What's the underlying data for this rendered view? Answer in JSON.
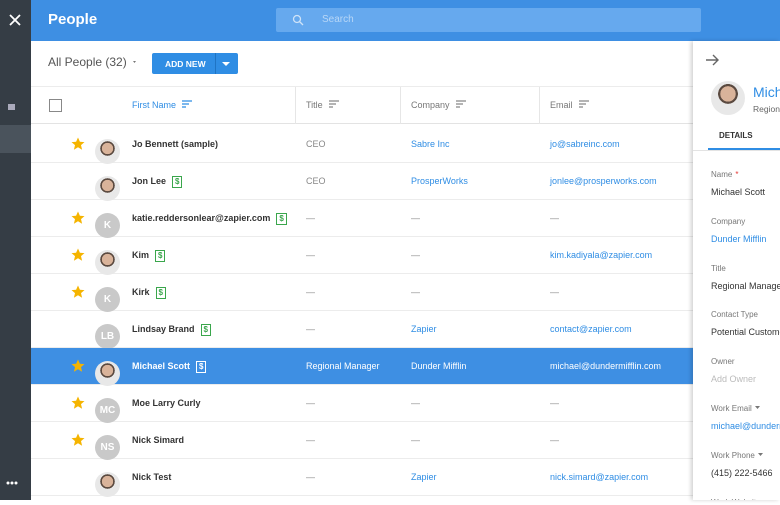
{
  "header": {
    "title": "People",
    "search_placeholder": "Search"
  },
  "toolbar": {
    "view": "All People (32)",
    "add_button": "ADD NEW"
  },
  "table": {
    "columns": [
      "First Name",
      "Title",
      "Company",
      "Email"
    ],
    "empty": "—",
    "badge": "$",
    "rows": [
      {
        "name": "Jo Bennett (sample)",
        "initials": null,
        "starred": true,
        "badge": false,
        "title": "CEO",
        "company": "Sabre Inc",
        "email": "jo@sabreinc.com",
        "selected": false
      },
      {
        "name": "Jon Lee",
        "initials": null,
        "starred": false,
        "badge": true,
        "title": "CEO",
        "company": "ProsperWorks",
        "email": "jonlee@prosperworks.com",
        "selected": false
      },
      {
        "name": "katie.reddersonlear@zapier.com",
        "initials": "K",
        "starred": true,
        "badge": true,
        "title": null,
        "company": null,
        "email": null,
        "selected": false
      },
      {
        "name": "Kim",
        "initials": null,
        "starred": true,
        "badge": true,
        "title": null,
        "company": null,
        "email": "kim.kadiyala@zapier.com",
        "selected": false
      },
      {
        "name": "Kirk",
        "initials": "K",
        "starred": true,
        "badge": true,
        "title": null,
        "company": null,
        "email": null,
        "selected": false
      },
      {
        "name": "Lindsay Brand",
        "initials": "LB",
        "starred": false,
        "badge": true,
        "title": null,
        "company": "Zapier",
        "email": "contact@zapier.com",
        "selected": false
      },
      {
        "name": "Michael Scott",
        "initials": null,
        "starred": true,
        "badge": true,
        "title": "Regional Manager",
        "company": "Dunder Mifflin",
        "email": "michael@dundermifflin.com",
        "selected": true
      },
      {
        "name": "Moe Larry Curly",
        "initials": "MC",
        "starred": true,
        "badge": false,
        "title": null,
        "company": null,
        "email": null,
        "selected": false
      },
      {
        "name": "Nick Simard",
        "initials": "NS",
        "starred": true,
        "badge": false,
        "title": null,
        "company": null,
        "email": null,
        "selected": false
      },
      {
        "name": "Nick Test",
        "initials": null,
        "starred": false,
        "badge": false,
        "title": null,
        "company": "Zapier",
        "email": "nick.simard@zapier.com",
        "selected": false
      }
    ]
  },
  "detail": {
    "name": "Michael Scott",
    "subtitle": "Regional Manager",
    "tab": "DETAILS",
    "required_mark": "*",
    "fields": [
      {
        "label": "Name",
        "required": true,
        "dropdown": false,
        "value": "Michael Scott",
        "style": "text"
      },
      {
        "label": "Company",
        "required": false,
        "dropdown": false,
        "value": "Dunder Mifflin",
        "style": "link"
      },
      {
        "label": "Title",
        "required": false,
        "dropdown": false,
        "value": "Regional Manager",
        "style": "text"
      },
      {
        "label": "Contact Type",
        "required": false,
        "dropdown": false,
        "value": "Potential Customer",
        "style": "text"
      },
      {
        "label": "Owner",
        "required": false,
        "dropdown": false,
        "value": "Add Owner",
        "style": "placeholder"
      },
      {
        "label": "Work Email",
        "required": false,
        "dropdown": true,
        "value": "michael@dundermifflin.com",
        "style": "link"
      },
      {
        "label": "Work Phone",
        "required": false,
        "dropdown": true,
        "value": "(415) 222-5466",
        "style": "text"
      },
      {
        "label": "Work Website",
        "required": false,
        "dropdown": false,
        "value": null,
        "style": "text"
      }
    ]
  }
}
